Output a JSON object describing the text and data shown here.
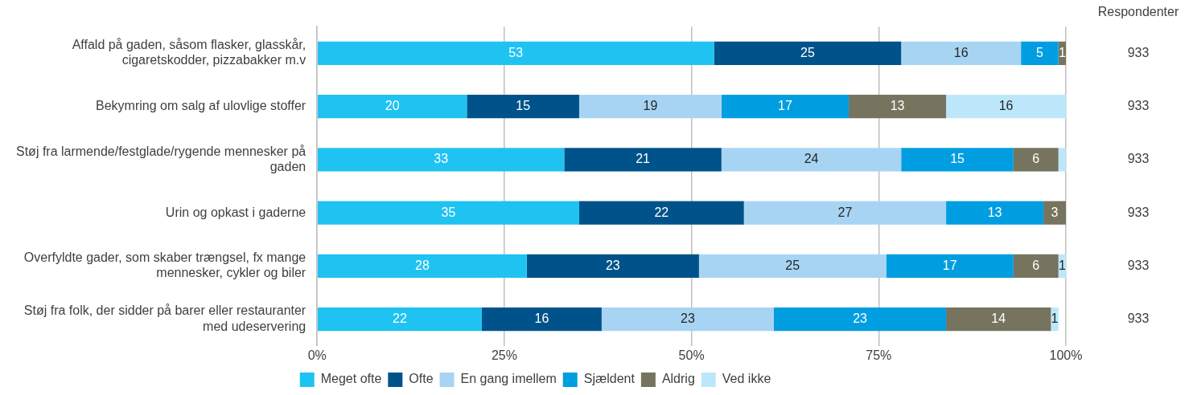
{
  "chart_data": {
    "type": "bar",
    "orientation": "horizontal",
    "stacked": true,
    "categories": [
      "Affald på gaden, såsom flasker, glasskår, cigaretskodder, pizzabakker m.v",
      "Bekymring om salg af ulovlige stoffer",
      "Støj fra larmende/festglade/rygende mennesker på gaden",
      "Urin og opkast i gaderne",
      "Overfyldte gader, som skaber trængsel, fx mange mennesker, cykler og biler",
      "Støj fra folk, der sidder på barer eller restauranter med udeservering"
    ],
    "series": [
      {
        "name": "Meget ofte",
        "color": "#1fc3f1",
        "values": [
          53,
          20,
          33,
          35,
          28,
          22
        ],
        "value_labels": [
          "53",
          "20",
          "33",
          "35",
          "28",
          "22"
        ]
      },
      {
        "name": "Ofte",
        "color": "#00538a",
        "values": [
          25,
          15,
          21,
          22,
          23,
          16
        ],
        "value_labels": [
          "25",
          "15",
          "21",
          "22",
          "23",
          "16"
        ]
      },
      {
        "name": "En gang imellem",
        "color": "#a8d4f4",
        "values": [
          16,
          19,
          24,
          27,
          25,
          23
        ],
        "value_labels": [
          "16",
          "19",
          "24",
          "27",
          "25",
          "23"
        ]
      },
      {
        "name": "Sjældent",
        "color": "#009ee0",
        "values": [
          5,
          17,
          15,
          13,
          17,
          23
        ],
        "value_labels": [
          "5",
          "17",
          "15",
          "13",
          "17",
          "23"
        ]
      },
      {
        "name": "Aldrig",
        "color": "#76735f",
        "values": [
          1,
          13,
          6,
          3,
          6,
          14
        ],
        "value_labels": [
          "1",
          "13",
          "6",
          "3",
          "6",
          "14"
        ]
      },
      {
        "name": "Ved ikke",
        "color": "#bce7fb",
        "values": [
          0,
          16,
          1,
          0,
          1,
          1
        ],
        "value_labels": [
          null,
          "16",
          null,
          null,
          "1",
          "1"
        ]
      }
    ],
    "xlim": [
      0,
      100
    ],
    "xticks": [
      {
        "value": 0,
        "label": "0%"
      },
      {
        "value": 25,
        "label": "25%"
      },
      {
        "value": 50,
        "label": "50%"
      },
      {
        "value": 75,
        "label": "75%"
      },
      {
        "value": 100,
        "label": "100%"
      }
    ],
    "grid": "x",
    "legend": "bottom",
    "annotations": [
      "Respondenter",
      "933",
      "933",
      "933",
      "933",
      "933",
      "933"
    ]
  }
}
